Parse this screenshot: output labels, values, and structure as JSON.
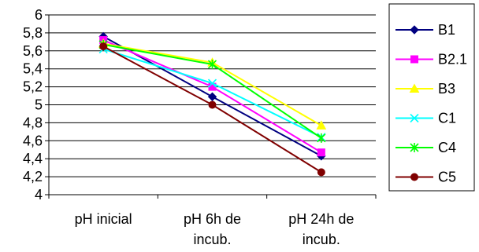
{
  "chart_data": {
    "type": "line",
    "title": "",
    "xlabel": "",
    "ylabel": "",
    "categories": [
      [
        "pH inicial"
      ],
      [
        "pH 6h de",
        "incub."
      ],
      [
        "pH 24h de",
        "incub."
      ]
    ],
    "ylim": [
      4,
      6
    ],
    "y_ticks": [
      "4",
      "4,2",
      "4,4",
      "4,6",
      "4,8",
      "5",
      "5,2",
      "5,4",
      "5,6",
      "5,8",
      "6"
    ],
    "grid": true,
    "legend_position": "right",
    "series": [
      {
        "name": "B1",
        "values": [
          5.76,
          5.09,
          4.43
        ],
        "color": "#000080",
        "marker": "diamond"
      },
      {
        "name": "B2.1",
        "values": [
          5.72,
          5.2,
          4.47
        ],
        "color": "#FF00FF",
        "marker": "square"
      },
      {
        "name": "B3",
        "values": [
          5.68,
          5.47,
          4.77
        ],
        "color": "#FFFF00",
        "marker": "triangle"
      },
      {
        "name": "C1",
        "values": [
          5.62,
          5.24,
          4.64
        ],
        "color": "#00FFFF",
        "marker": "x"
      },
      {
        "name": "C4",
        "values": [
          5.67,
          5.45,
          4.63
        ],
        "color": "#00FF00",
        "marker": "star"
      },
      {
        "name": "C5",
        "values": [
          5.65,
          5.0,
          4.25
        ],
        "color": "#800000",
        "marker": "circle"
      }
    ]
  }
}
